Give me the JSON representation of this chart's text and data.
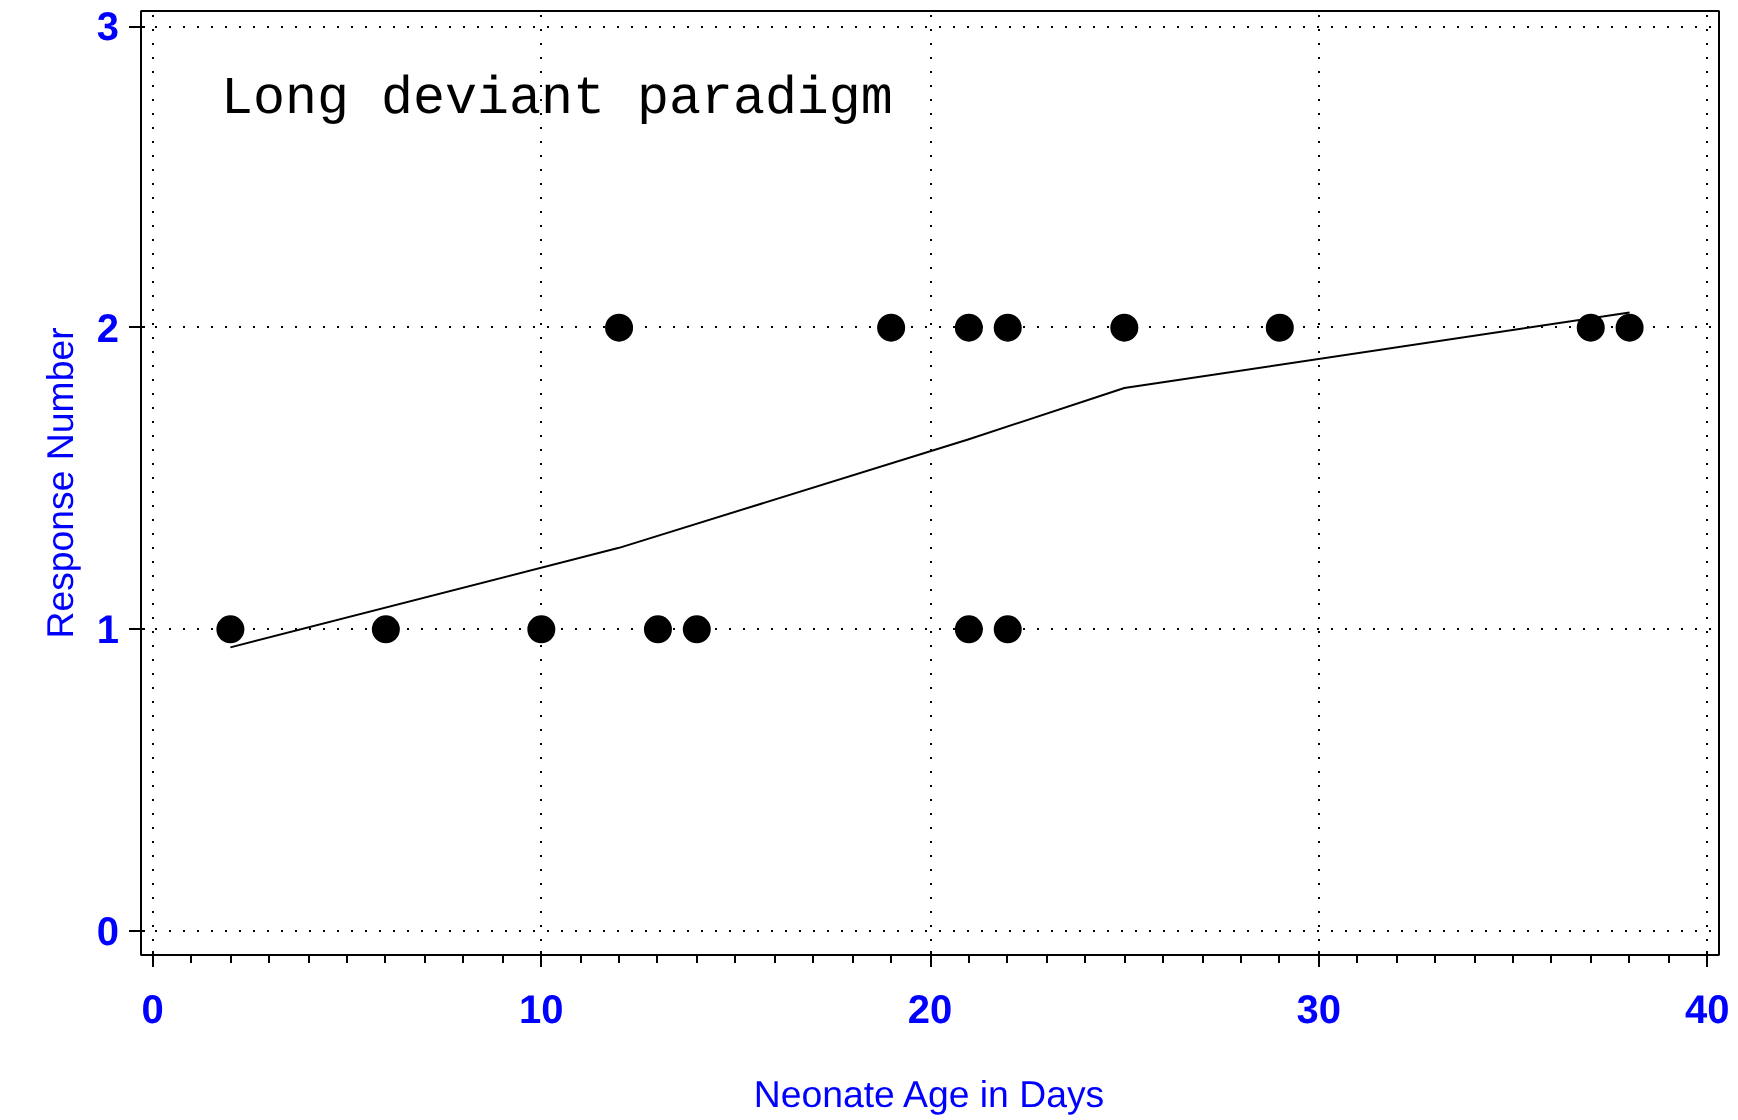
{
  "chart_data": {
    "type": "scatter",
    "title": "Long deviant paradigm",
    "xlabel": "Neonate Age in Days",
    "ylabel": "Response Number",
    "xlim": [
      -0.3,
      40.3
    ],
    "ylim": [
      -0.08,
      3.05
    ],
    "xticks": [
      0,
      10,
      20,
      30,
      40
    ],
    "yticks": [
      0,
      1,
      2,
      3
    ],
    "grid": true,
    "series": [
      {
        "marker": "circle",
        "color": "#000000",
        "x": [
          2,
          6,
          10,
          12,
          13,
          14,
          19,
          21,
          21,
          22,
          22,
          25,
          29,
          37,
          38
        ],
        "values": [
          1,
          1,
          1,
          2,
          1,
          1,
          2,
          2,
          1,
          2,
          1,
          2,
          2,
          2,
          2
        ]
      },
      {
        "type": "line",
        "color": "#000000",
        "line_style": "solid",
        "x": [
          2,
          12,
          21,
          25,
          38
        ],
        "values": [
          0.94,
          1.27,
          1.63,
          1.8,
          2.05
        ]
      }
    ]
  }
}
